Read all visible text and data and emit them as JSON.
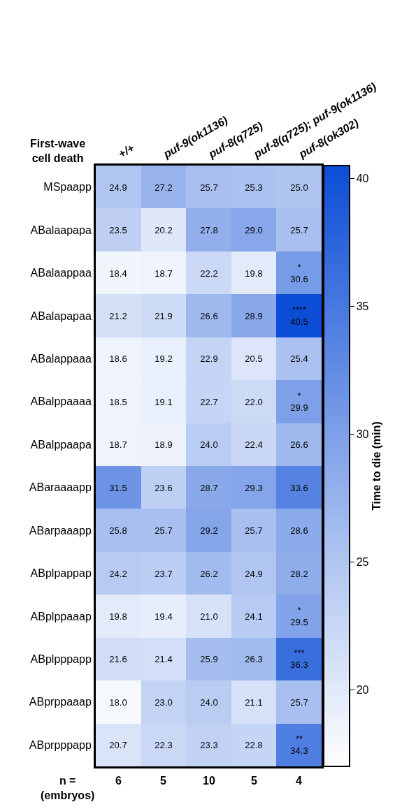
{
  "chart_data": {
    "type": "heatmap",
    "ylabel": "First-wave\ncell death",
    "clabel": "Time to die (min)",
    "categories": [
      "+/+",
      "puf-9(ok1136)",
      "puf-8(q725)",
      "puf-8(q725); puf-9(ok1136)",
      "puf-8(ok302)"
    ],
    "y_categories": [
      "MSpaapp",
      "ABalaapapa",
      "ABalaappaa",
      "ABalapapaa",
      "ABalappaaa",
      "ABalppaaaa",
      "ABalppaapa",
      "ABaraaaapp",
      "ABarpaaapp",
      "ABplpappap",
      "ABplppaaap",
      "ABplpppapp",
      "ABprppaaap",
      "ABprpppapp"
    ],
    "cells": [
      [
        24.9,
        27.2,
        25.7,
        25.3,
        25.0
      ],
      [
        23.5,
        20.2,
        27.8,
        29.0,
        25.7
      ],
      [
        18.4,
        18.7,
        22.2,
        19.8,
        30.6
      ],
      [
        21.2,
        21.9,
        26.6,
        28.9,
        40.5
      ],
      [
        18.6,
        19.2,
        22.9,
        20.5,
        25.4
      ],
      [
        18.5,
        19.1,
        22.7,
        22.0,
        29.9
      ],
      [
        18.7,
        18.9,
        24.0,
        22.4,
        26.6
      ],
      [
        31.5,
        23.6,
        28.7,
        29.3,
        33.6
      ],
      [
        25.8,
        25.7,
        29.2,
        25.7,
        28.6
      ],
      [
        24.2,
        23.7,
        26.2,
        24.9,
        28.2
      ],
      [
        19.8,
        19.4,
        21.0,
        24.1,
        29.5
      ],
      [
        21.6,
        21.4,
        25.9,
        26.3,
        36.3
      ],
      [
        18.0,
        23.0,
        24.0,
        21.1,
        25.7
      ],
      [
        20.7,
        22.3,
        23.3,
        22.8,
        34.3
      ]
    ],
    "cell_labels": [
      [
        "24.9",
        "27.2",
        "25.7",
        "25.3",
        "25.0"
      ],
      [
        "23.5",
        "20.2",
        "27.8",
        "29.0",
        "25.7"
      ],
      [
        "18.4",
        "18.7",
        "22.2",
        "19.8",
        "*\n30.6"
      ],
      [
        "21.2",
        "21.9",
        "26.6",
        "28.9",
        "****\n40.5"
      ],
      [
        "18.6",
        "19.2",
        "22.9",
        "20.5",
        "25.4"
      ],
      [
        "18.5",
        "19.1",
        "22.7",
        "22.0",
        "*\n29.9"
      ],
      [
        "18.7",
        "18.9",
        "24.0",
        "22.4",
        "26.6"
      ],
      [
        "31.5",
        "23.6",
        "28.7",
        "29.3",
        "33.6"
      ],
      [
        "25.8",
        "25.7",
        "29.2",
        "25.7",
        "28.6"
      ],
      [
        "24.2",
        "23.7",
        "26.2",
        "24.9",
        "28.2"
      ],
      [
        "19.8",
        "19.4",
        "21.0",
        "24.1",
        "*\n29.5"
      ],
      [
        "21.6",
        "21.4",
        "25.9",
        "26.3",
        "***\n36.3"
      ],
      [
        "18.0",
        "23.0",
        "24.0",
        "21.1",
        "25.7"
      ],
      [
        "20.7",
        "22.3",
        "23.3",
        "22.8",
        "**\n34.3"
      ]
    ],
    "clim": [
      17,
      40.5
    ],
    "cticks": [
      20,
      25,
      30,
      35,
      40
    ],
    "annotations": [
      "n =\n(embryos)",
      "6",
      "5",
      "10",
      "5",
      "4"
    ]
  }
}
